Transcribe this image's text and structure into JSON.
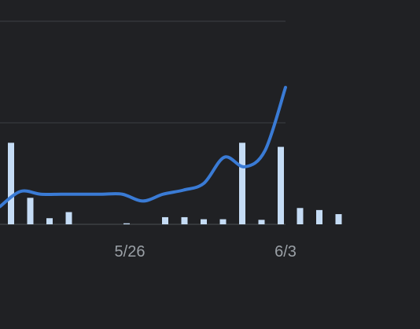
{
  "theme": {
    "background": "#202124",
    "gridline": "#3c4043",
    "line_color": "#3a7bd5",
    "bar_color": "#c5dcf5",
    "tick_label_color": "#9aa0a6"
  },
  "chart_data": {
    "type": "bar",
    "title": "",
    "xlabel": "",
    "ylabel": "",
    "grid": true,
    "legend": "none",
    "x_ticks": [
      "5/26",
      "6/3"
    ],
    "bar_ylim": [
      0,
      1.0
    ],
    "line_ylim": [
      0,
      1.0
    ],
    "series": [
      {
        "type": "bar",
        "values": [
          0.4,
          0.13,
          0.03,
          0.06,
          0.0,
          0.0,
          0.005,
          0.0,
          0.035,
          0.035,
          0.025,
          0.025,
          0.4,
          0.022,
          0.38,
          0.08,
          0.07,
          0.05
        ]
      },
      {
        "type": "line",
        "values": [
          0.13,
          0.24,
          0.22,
          0.22,
          0.22,
          0.22,
          0.22,
          0.17,
          0.22,
          0.25,
          0.3,
          0.49,
          0.42,
          0.54,
          1.0
        ]
      }
    ]
  }
}
